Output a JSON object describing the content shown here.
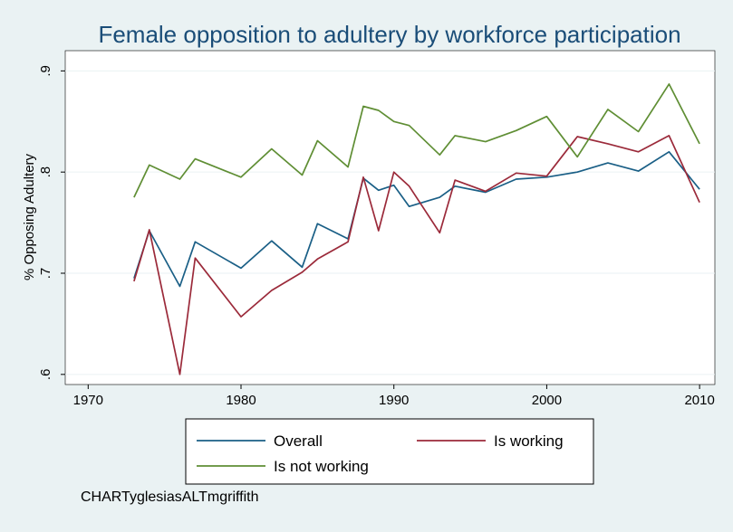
{
  "chart_data": {
    "type": "line",
    "title": "Female opposition to adultery by workforce participation",
    "xlabel": "",
    "ylabel": "% Opposing Adultery",
    "xlim": [
      1968.5,
      2011
    ],
    "ylim": [
      0.59,
      0.92
    ],
    "x_ticks": [
      "1970",
      "1980",
      "1990",
      "2000",
      "2010"
    ],
    "y_ticks": [
      ".6",
      ".7",
      ".8",
      ".9"
    ],
    "grid": "horizontal",
    "legend_position": "bottom",
    "series": [
      {
        "name": "Overall",
        "color": "#1a5f86",
        "x": [
          1973,
          1974,
          1976,
          1977,
          1980,
          1982,
          1984,
          1985,
          1987,
          1988,
          1989,
          1990,
          1991,
          1993,
          1994,
          1996,
          1998,
          2000,
          2002,
          2004,
          2006,
          2008,
          2010
        ],
        "y": [
          0.695,
          0.742,
          0.687,
          0.731,
          0.705,
          0.732,
          0.706,
          0.749,
          0.734,
          0.794,
          0.782,
          0.787,
          0.766,
          0.775,
          0.786,
          0.78,
          0.793,
          0.795,
          0.8,
          0.809,
          0.801,
          0.82,
          0.783
        ]
      },
      {
        "name": "Is working",
        "color": "#9b2a3a",
        "x": [
          1973,
          1974,
          1976,
          1977,
          1980,
          1982,
          1984,
          1985,
          1987,
          1988,
          1989,
          1990,
          1991,
          1993,
          1994,
          1996,
          1998,
          2000,
          2002,
          2004,
          2006,
          2008,
          2010
        ],
        "y": [
          0.692,
          0.743,
          0.6,
          0.715,
          0.657,
          0.683,
          0.701,
          0.714,
          0.731,
          0.795,
          0.742,
          0.8,
          0.786,
          0.74,
          0.792,
          0.781,
          0.799,
          0.796,
          0.835,
          0.828,
          0.82,
          0.836,
          0.77
        ]
      },
      {
        "name": "Is not working",
        "color": "#5f8e34",
        "x": [
          1973,
          1974,
          1976,
          1977,
          1980,
          1982,
          1984,
          1985,
          1987,
          1988,
          1989,
          1990,
          1991,
          1993,
          1994,
          1996,
          1998,
          2000,
          2002,
          2004,
          2006,
          2008,
          2010
        ],
        "y": [
          0.775,
          0.807,
          0.793,
          0.813,
          0.795,
          0.823,
          0.797,
          0.831,
          0.805,
          0.865,
          0.861,
          0.85,
          0.846,
          0.817,
          0.836,
          0.83,
          0.841,
          0.855,
          0.815,
          0.862,
          0.84,
          0.887,
          0.828
        ]
      }
    ],
    "note": "CHARTyglesiasALTmgriffith"
  },
  "colors": {
    "background": "#eaf2f3",
    "plot_background": "#ffffff",
    "title": "#1a4d78",
    "gridline": "#eaf2f3"
  }
}
